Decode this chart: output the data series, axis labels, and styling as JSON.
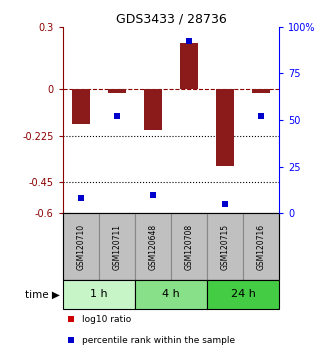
{
  "title": "GDS3433 / 28736",
  "samples": [
    "GSM120710",
    "GSM120711",
    "GSM120648",
    "GSM120708",
    "GSM120715",
    "GSM120716"
  ],
  "log10_ratio": [
    -0.17,
    -0.02,
    -0.2,
    0.22,
    -0.37,
    -0.02
  ],
  "percentile_rank": [
    8,
    52,
    10,
    92,
    5,
    52
  ],
  "ylim_left": [
    -0.6,
    0.3
  ],
  "ylim_right": [
    0,
    100
  ],
  "yticks_left": [
    0.3,
    0,
    -0.225,
    -0.45,
    -0.6
  ],
  "yticks_right": [
    100,
    75,
    50,
    25,
    0
  ],
  "hlines": [
    0,
    -0.225,
    -0.45
  ],
  "hline_styles": [
    "dashed",
    "dotted",
    "dotted"
  ],
  "hline_colors": [
    "darkred",
    "black",
    "black"
  ],
  "groups": [
    {
      "label": "1 h",
      "indices": [
        0,
        1
      ],
      "color": "#c8f5c8"
    },
    {
      "label": "4 h",
      "indices": [
        2,
        3
      ],
      "color": "#88e088"
    },
    {
      "label": "24 h",
      "indices": [
        4,
        5
      ],
      "color": "#44cc44"
    }
  ],
  "bar_color": "#8b1a1a",
  "dot_color": "#0000cc",
  "sample_bg_color": "#c0c0c0",
  "sample_border_color": "#888888",
  "time_label": "time",
  "legend_items": [
    {
      "label": "log10 ratio",
      "color": "#cc0000"
    },
    {
      "label": "percentile rank within the sample",
      "color": "#0000cc"
    }
  ],
  "bar_width": 0.5
}
